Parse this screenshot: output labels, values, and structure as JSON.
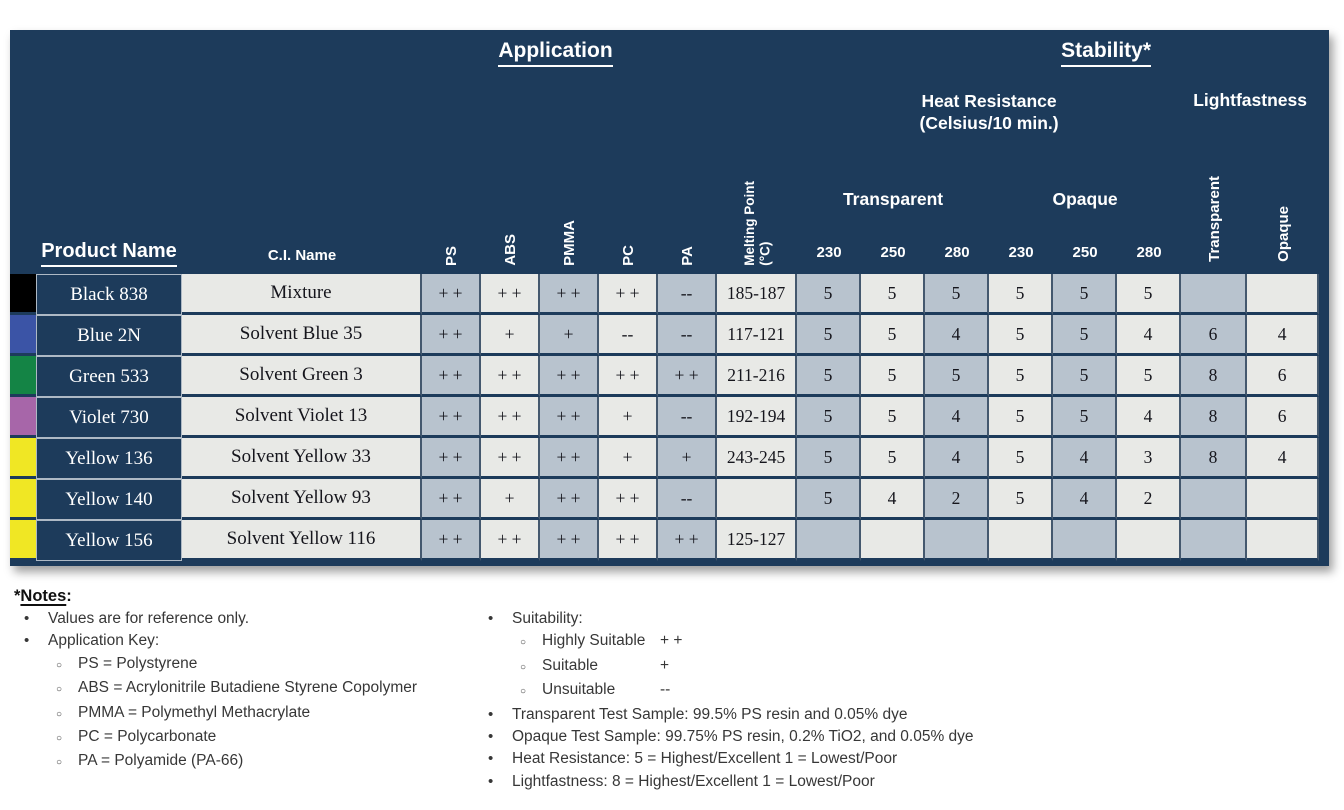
{
  "colors": {
    "navy": "#1D3B5B",
    "cell_blue": "#B8C3CE",
    "cell_light": "#E8E9E6",
    "grid_line": "#44586E",
    "product_border": "#AEB9C5",
    "notes_text": "#373737"
  },
  "table": {
    "header": {
      "application": "Application",
      "stability": "Stability*",
      "heat_resistance_line1": "Heat Resistance",
      "heat_resistance_line2": "(Celsius/10 min.)",
      "lightfastness": "Lightfastness",
      "transparent_group": "Transparent",
      "opaque_group": "Opaque",
      "product_name": "Product Name",
      "ci_name": "C.I. Name",
      "app_cols": [
        "PS",
        "ABS",
        "PMMA",
        "PC",
        "PA"
      ],
      "melting_point_line1": "Melting Point",
      "melting_point_line2": "(°C)",
      "temps": [
        "230",
        "250",
        "280",
        "230",
        "250",
        "280"
      ],
      "lf_transparent": "Transparent",
      "lf_opaque": "Opaque"
    },
    "rows": [
      {
        "swatch": "#000000",
        "product": "Black 838",
        "ci": "Mixture",
        "cells": [
          "+ +",
          "+ +",
          "+ +",
          "+ +",
          "--",
          "185-187",
          "5",
          "5",
          "5",
          "5",
          "5",
          "5",
          "",
          ""
        ]
      },
      {
        "swatch": "#3B54A6",
        "product": "Blue 2N",
        "ci": "Solvent Blue 35",
        "cells": [
          "+ +",
          "+",
          "+",
          "--",
          "--",
          "117-121",
          "5",
          "5",
          "4",
          "5",
          "5",
          "4",
          "6",
          "4"
        ]
      },
      {
        "swatch": "#148445",
        "product": "Green 533",
        "ci": "Solvent Green 3",
        "cells": [
          "+ +",
          "+ +",
          "+ +",
          "+ +",
          "+ +",
          "211-216",
          "5",
          "5",
          "5",
          "5",
          "5",
          "5",
          "8",
          "6"
        ]
      },
      {
        "swatch": "#A766A9",
        "product": "Violet 730",
        "ci": "Solvent Violet 13",
        "cells": [
          "+ +",
          "+ +",
          "+ +",
          "+",
          "--",
          "192-194",
          "5",
          "5",
          "4",
          "5",
          "5",
          "4",
          "8",
          "6"
        ]
      },
      {
        "swatch": "#F0E724",
        "product": "Yellow 136",
        "ci": "Solvent Yellow 33",
        "cells": [
          "+ +",
          "+ +",
          "+ +",
          "+",
          "+",
          "243-245",
          "5",
          "5",
          "4",
          "5",
          "4",
          "3",
          "8",
          "4"
        ]
      },
      {
        "swatch": "#F0E724",
        "product": "Yellow 140",
        "ci": "Solvent Yellow 93",
        "cells": [
          "+ +",
          "+",
          "+ +",
          "+ +",
          "--",
          "",
          "5",
          "4",
          "2",
          "5",
          "4",
          "2",
          "",
          ""
        ]
      },
      {
        "swatch": "#F0E724",
        "product": "Yellow 156",
        "ci": "Solvent Yellow 116",
        "cells": [
          "+ +",
          "+ +",
          "+ +",
          "+ +",
          "+ +",
          "125-127",
          "",
          "",
          "",
          "",
          "",
          "",
          "",
          ""
        ]
      }
    ]
  },
  "notes": {
    "title_prefix": "*",
    "title": "Notes",
    "title_suffix": ":",
    "left": [
      {
        "level": 1,
        "text": "Values are for reference only."
      },
      {
        "level": 1,
        "text": "Application Key:"
      },
      {
        "level": 2,
        "text": "PS = Polystyrene"
      },
      {
        "level": 2,
        "text": "ABS = Acrylonitrile Butadiene Styrene Copolymer"
      },
      {
        "level": 2,
        "text": "PMMA = Polymethyl Methacrylate"
      },
      {
        "level": 2,
        "text": "PC = Polycarbonate"
      },
      {
        "level": 2,
        "text": "PA = Polyamide (PA-66)"
      }
    ],
    "right": [
      {
        "level": 1,
        "text": "Suitability:"
      },
      {
        "level": 2,
        "text": "Highly Suitable",
        "sym": "+ +"
      },
      {
        "level": 2,
        "text": "Suitable",
        "sym": "+"
      },
      {
        "level": 2,
        "text": "Unsuitable",
        "sym": "--"
      },
      {
        "level": 1,
        "text": "Transparent Test Sample: 99.5% PS resin and 0.05% dye"
      },
      {
        "level": 1,
        "text": "Opaque Test Sample: 99.75% PS resin, 0.2% TiO2, and 0.05% dye"
      },
      {
        "level": 1,
        "text": "Heat Resistance: 5 = Highest/Excellent 1 = Lowest/Poor"
      },
      {
        "level": 1,
        "text": "Lightfastness: 8 = Highest/Excellent 1 = Lowest/Poor"
      }
    ]
  }
}
